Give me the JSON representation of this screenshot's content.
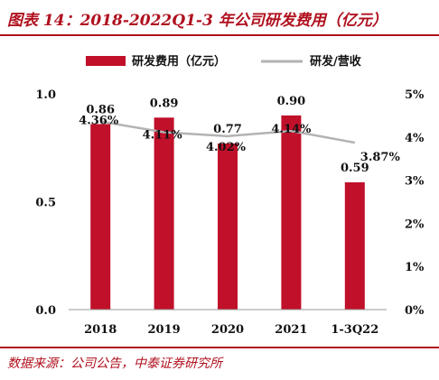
{
  "header": {
    "title": "图表 14：2018-2022Q1-3 年公司研发费用（亿元）"
  },
  "footer": {
    "source": "数据来源：公司公告，中泰证券研究所"
  },
  "chart_data": {
    "type": "bar",
    "categories": [
      "2018",
      "2019",
      "2020",
      "2021",
      "1-3Q22"
    ],
    "series": [
      {
        "name": "研发费用（亿元）",
        "type": "bar",
        "axis": "left",
        "values": [
          0.86,
          0.89,
          0.77,
          0.9,
          0.59
        ],
        "labels": [
          "0.86",
          "0.89",
          "0.77",
          "0.90",
          "0.59"
        ],
        "color": "#c0102a"
      },
      {
        "name": "研发/营收",
        "type": "line",
        "axis": "right",
        "values": [
          4.36,
          4.11,
          4.02,
          4.14,
          3.87
        ],
        "labels": [
          "4.36%",
          "4.11%",
          "4.02%",
          "4.14%",
          "3.87%"
        ],
        "color": "#b3b3b3"
      }
    ],
    "y_left": {
      "range": [
        0,
        1.0
      ],
      "ticks": [
        "0.0",
        "0.5",
        "1.0"
      ]
    },
    "y_right": {
      "range": [
        0,
        5
      ],
      "ticks": [
        "0%",
        "1%",
        "2%",
        "3%",
        "4%",
        "5%"
      ]
    },
    "legend_position": "top",
    "grid": false
  }
}
